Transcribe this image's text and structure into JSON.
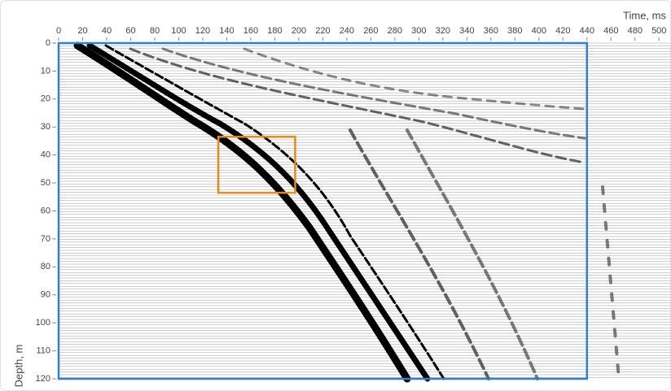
{
  "chart_data": {
    "type": "wiggle",
    "x_label": "Time, ms",
    "y_label": "Depth, m",
    "xlim": [
      0,
      510
    ],
    "ylim": [
      0,
      120
    ],
    "xticks": [
      0,
      20,
      40,
      60,
      80,
      100,
      120,
      140,
      160,
      180,
      200,
      220,
      240,
      260,
      280,
      300,
      320,
      340,
      360,
      380,
      400,
      420,
      440,
      460,
      480,
      500
    ],
    "yticks": [
      0,
      10,
      20,
      30,
      40,
      50,
      60,
      70,
      80,
      90,
      100,
      110,
      120
    ],
    "regions": [
      {
        "color": "#2f7fd6",
        "x": [
          0,
          440
        ],
        "y": [
          0,
          120
        ]
      },
      {
        "color": "#e8891c",
        "x": [
          133,
          197
        ],
        "y": [
          33.5,
          53.5
        ]
      }
    ]
  }
}
